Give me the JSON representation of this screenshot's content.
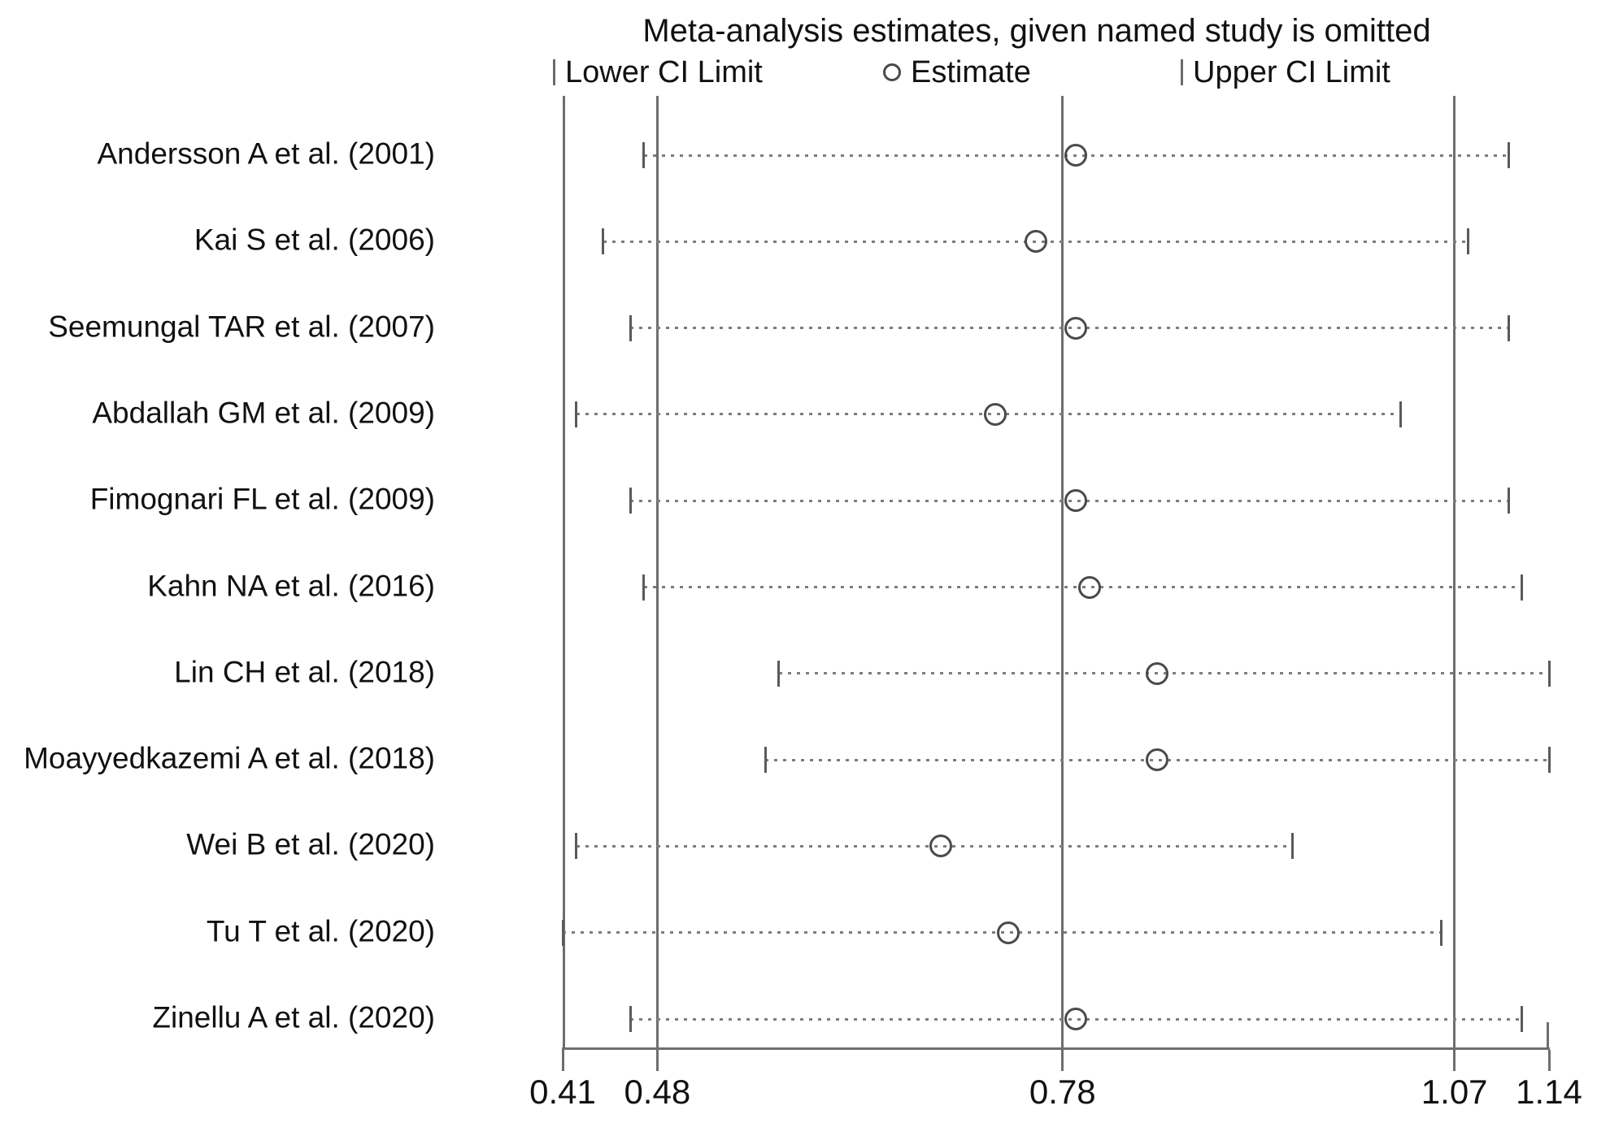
{
  "figure": {
    "title": "Meta-analysis estimates, given named study is omitted",
    "legend": {
      "lower_label": "Lower CI Limit",
      "estimate_label": "Estimate",
      "upper_label": "Upper CI Limit"
    },
    "line_color": "#6e6e6e",
    "marker_color": "#4a4a4a",
    "dotted_color": "#7d7d7d",
    "text_color": "#111111"
  },
  "chart_data": {
    "type": "scatter",
    "title": "Meta-analysis estimates, given named study is omitted",
    "xlabel": "",
    "ylabel": "",
    "xlim": [
      0.41,
      1.14
    ],
    "grid": false,
    "legend_position": "top",
    "legend_entries": [
      "Lower CI Limit",
      "Estimate",
      "Upper CI Limit"
    ],
    "x_axis": {
      "ticks": [
        {
          "value": 0.41,
          "label": "0.41"
        },
        {
          "value": 0.48,
          "label": "0.48"
        },
        {
          "value": 0.78,
          "label": "0.78"
        },
        {
          "value": 1.07,
          "label": "1.07"
        },
        {
          "value": 1.14,
          "label": "1.14"
        }
      ],
      "reference_lines": [
        0.48,
        0.78,
        1.07
      ]
    },
    "studies": [
      {
        "label": "Andersson A et al. (2001)",
        "lower": 0.47,
        "estimate": 0.79,
        "upper": 1.11
      },
      {
        "label": "Kai S et al. (2006)",
        "lower": 0.44,
        "estimate": 0.76,
        "upper": 1.08
      },
      {
        "label": "Seemungal TAR et al. (2007)",
        "lower": 0.46,
        "estimate": 0.79,
        "upper": 1.11
      },
      {
        "label": "Abdallah GM et al. (2009)",
        "lower": 0.42,
        "estimate": 0.73,
        "upper": 1.03
      },
      {
        "label": "Fimognari FL et al. (2009)",
        "lower": 0.46,
        "estimate": 0.79,
        "upper": 1.11
      },
      {
        "label": "Kahn NA et al. (2016)",
        "lower": 0.47,
        "estimate": 0.8,
        "upper": 1.12
      },
      {
        "label": "Lin CH et al. (2018)",
        "lower": 0.57,
        "estimate": 0.85,
        "upper": 1.14
      },
      {
        "label": "Moayyedkazemi A et al. (2018)",
        "lower": 0.56,
        "estimate": 0.85,
        "upper": 1.14
      },
      {
        "label": "Wei B et al. (2020)",
        "lower": 0.42,
        "estimate": 0.69,
        "upper": 0.95
      },
      {
        "label": "Tu T et al. (2020)",
        "lower": 0.41,
        "estimate": 0.74,
        "upper": 1.06
      },
      {
        "label": "Zinellu A et al. (2020)",
        "lower": 0.46,
        "estimate": 0.79,
        "upper": 1.12
      }
    ]
  }
}
